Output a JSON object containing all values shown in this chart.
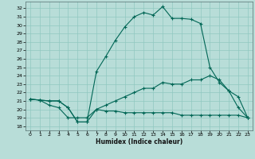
{
  "xlabel": "Humidex (Indice chaleur)",
  "bg_color": "#b8ddd8",
  "grid_color": "#90c8c0",
  "line_color": "#006655",
  "xlim": [
    -0.5,
    23.5
  ],
  "ylim": [
    17.5,
    32.8
  ],
  "yticks": [
    18,
    19,
    20,
    21,
    22,
    23,
    24,
    25,
    26,
    27,
    28,
    29,
    30,
    31,
    32
  ],
  "xticks": [
    0,
    1,
    2,
    3,
    4,
    5,
    6,
    7,
    8,
    9,
    10,
    11,
    12,
    13,
    14,
    15,
    16,
    17,
    18,
    19,
    20,
    21,
    22,
    23
  ],
  "line1_x": [
    0,
    1,
    2,
    3,
    4,
    5,
    6,
    7,
    8,
    9,
    10,
    11,
    12,
    13,
    14,
    15,
    16,
    17,
    18,
    19,
    20,
    21,
    22,
    23
  ],
  "line1_y": [
    21.2,
    21.1,
    21.0,
    21.0,
    20.2,
    18.5,
    18.5,
    20.0,
    19.8,
    19.8,
    19.6,
    19.6,
    19.6,
    19.6,
    19.6,
    19.6,
    19.3,
    19.3,
    19.3,
    19.3,
    19.3,
    19.3,
    19.3,
    19.0
  ],
  "line2_x": [
    0,
    1,
    2,
    3,
    4,
    5,
    6,
    7,
    8,
    9,
    10,
    11,
    12,
    13,
    14,
    15,
    16,
    17,
    18,
    19,
    20,
    21,
    22,
    23
  ],
  "line2_y": [
    21.2,
    21.1,
    21.0,
    21.0,
    20.2,
    18.5,
    18.5,
    24.5,
    26.3,
    28.2,
    29.8,
    31.0,
    31.5,
    31.2,
    32.2,
    30.8,
    30.8,
    30.7,
    30.2,
    25.0,
    23.2,
    22.2,
    20.2,
    19.0
  ],
  "line3_x": [
    0,
    1,
    2,
    3,
    4,
    5,
    6,
    7,
    8,
    9,
    10,
    11,
    12,
    13,
    14,
    15,
    16,
    17,
    18,
    19,
    20,
    21,
    22,
    23
  ],
  "line3_y": [
    21.2,
    21.1,
    20.5,
    20.2,
    19.0,
    19.0,
    19.0,
    20.0,
    20.5,
    21.0,
    21.5,
    22.0,
    22.5,
    22.5,
    23.2,
    23.0,
    23.0,
    23.5,
    23.5,
    24.0,
    23.5,
    22.2,
    21.5,
    19.0
  ]
}
